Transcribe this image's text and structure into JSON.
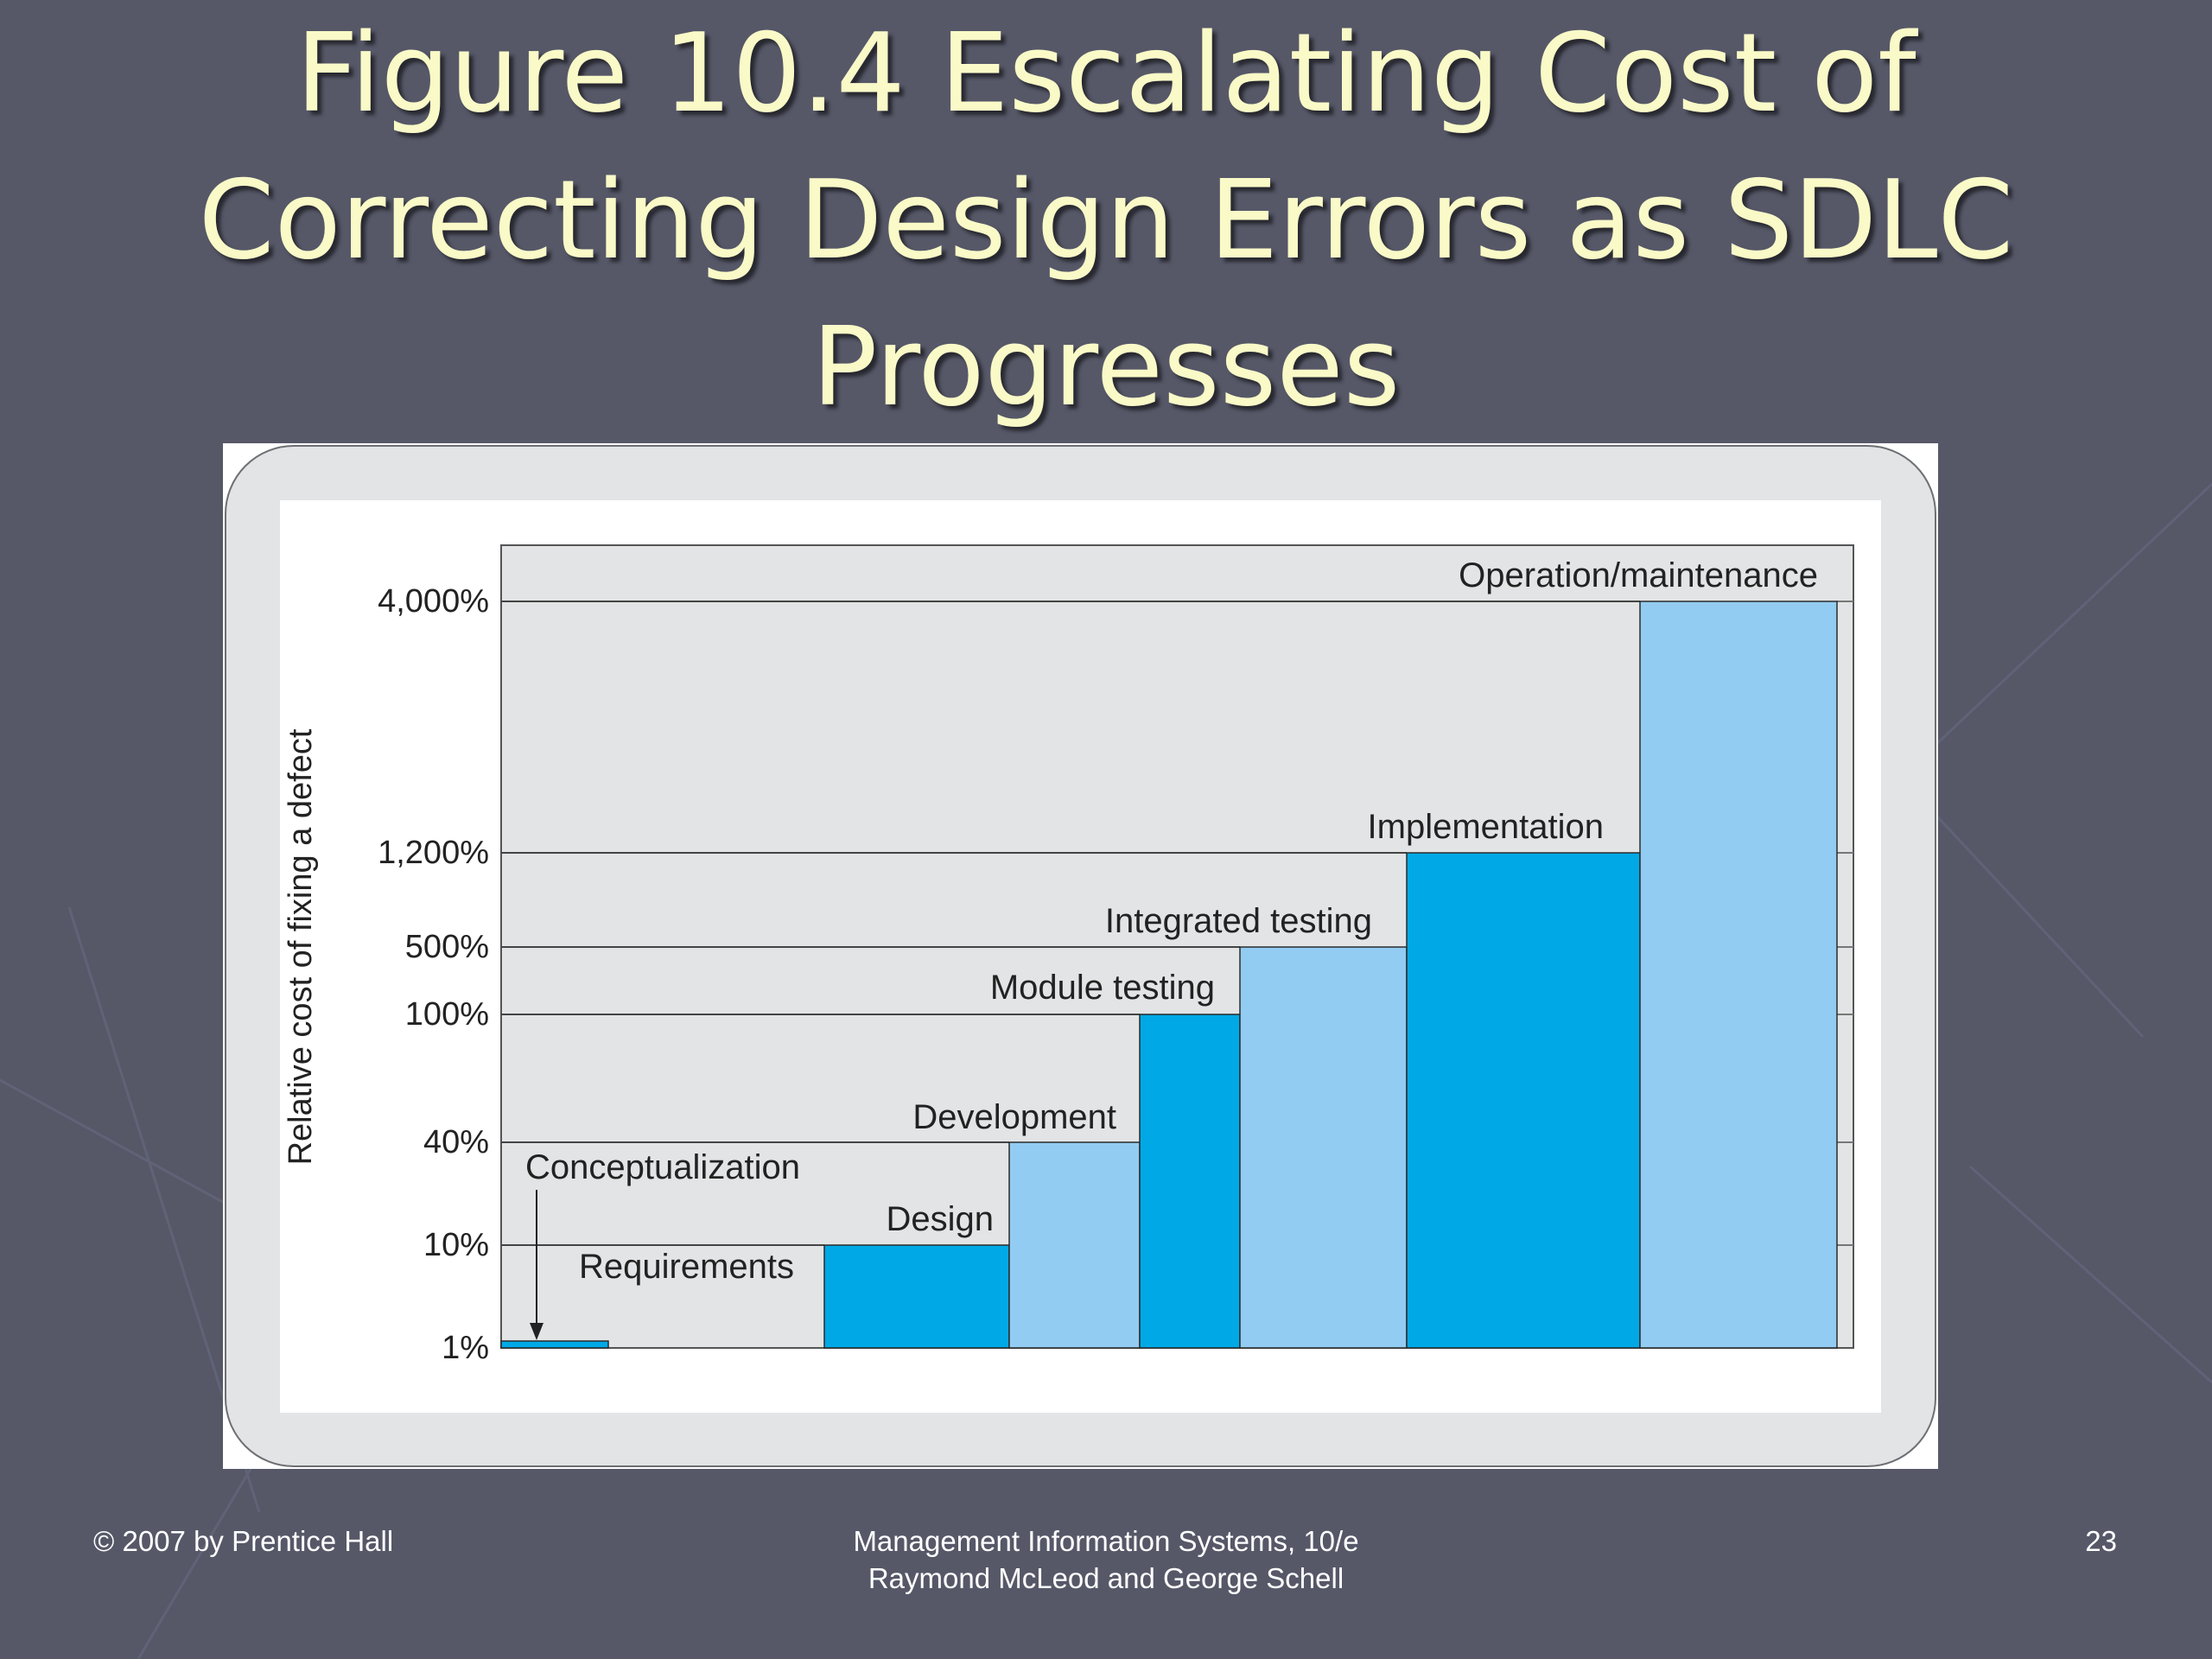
{
  "slide": {
    "title_lines": [
      "Figure 10.4 Escalating Cost of",
      "Correcting Design Errors as SDLC",
      "Progresses"
    ],
    "footer_left": "© 2007 by Prentice Hall",
    "footer_center_line1": "Management Information Systems, 10/e",
    "footer_center_line2": "Raymond McLeod and George Schell",
    "page_number": "23",
    "colors": {
      "background": "#565868",
      "title": "#fafac8",
      "bar_dark": "#00a9e6",
      "bar_light": "#92ccf2",
      "plot_bg": "#e3e4e5"
    }
  },
  "chart_data": {
    "type": "bar",
    "title": "",
    "xlabel": "",
    "ylabel": "Relative cost of fixing a defect",
    "y_scale": "non-linear (categorical percent levels)",
    "y_ticks": [
      "1%",
      "10%",
      "40%",
      "100%",
      "500%",
      "1,200%",
      "4,000%"
    ],
    "y_tick_values": [
      1,
      10,
      40,
      100,
      500,
      1200,
      4000
    ],
    "grid": "horizontal lines at each level",
    "categories": [
      "Conceptualization",
      "Requirements",
      "Design",
      "Development",
      "Module testing",
      "Integrated testing",
      "Implementation",
      "Operation/maintenance"
    ],
    "values": [
      1,
      1,
      10,
      40,
      100,
      500,
      1200,
      4000
    ],
    "bar_colors": [
      "dark",
      "light",
      "dark",
      "light",
      "dark",
      "light",
      "dark",
      "light"
    ]
  }
}
